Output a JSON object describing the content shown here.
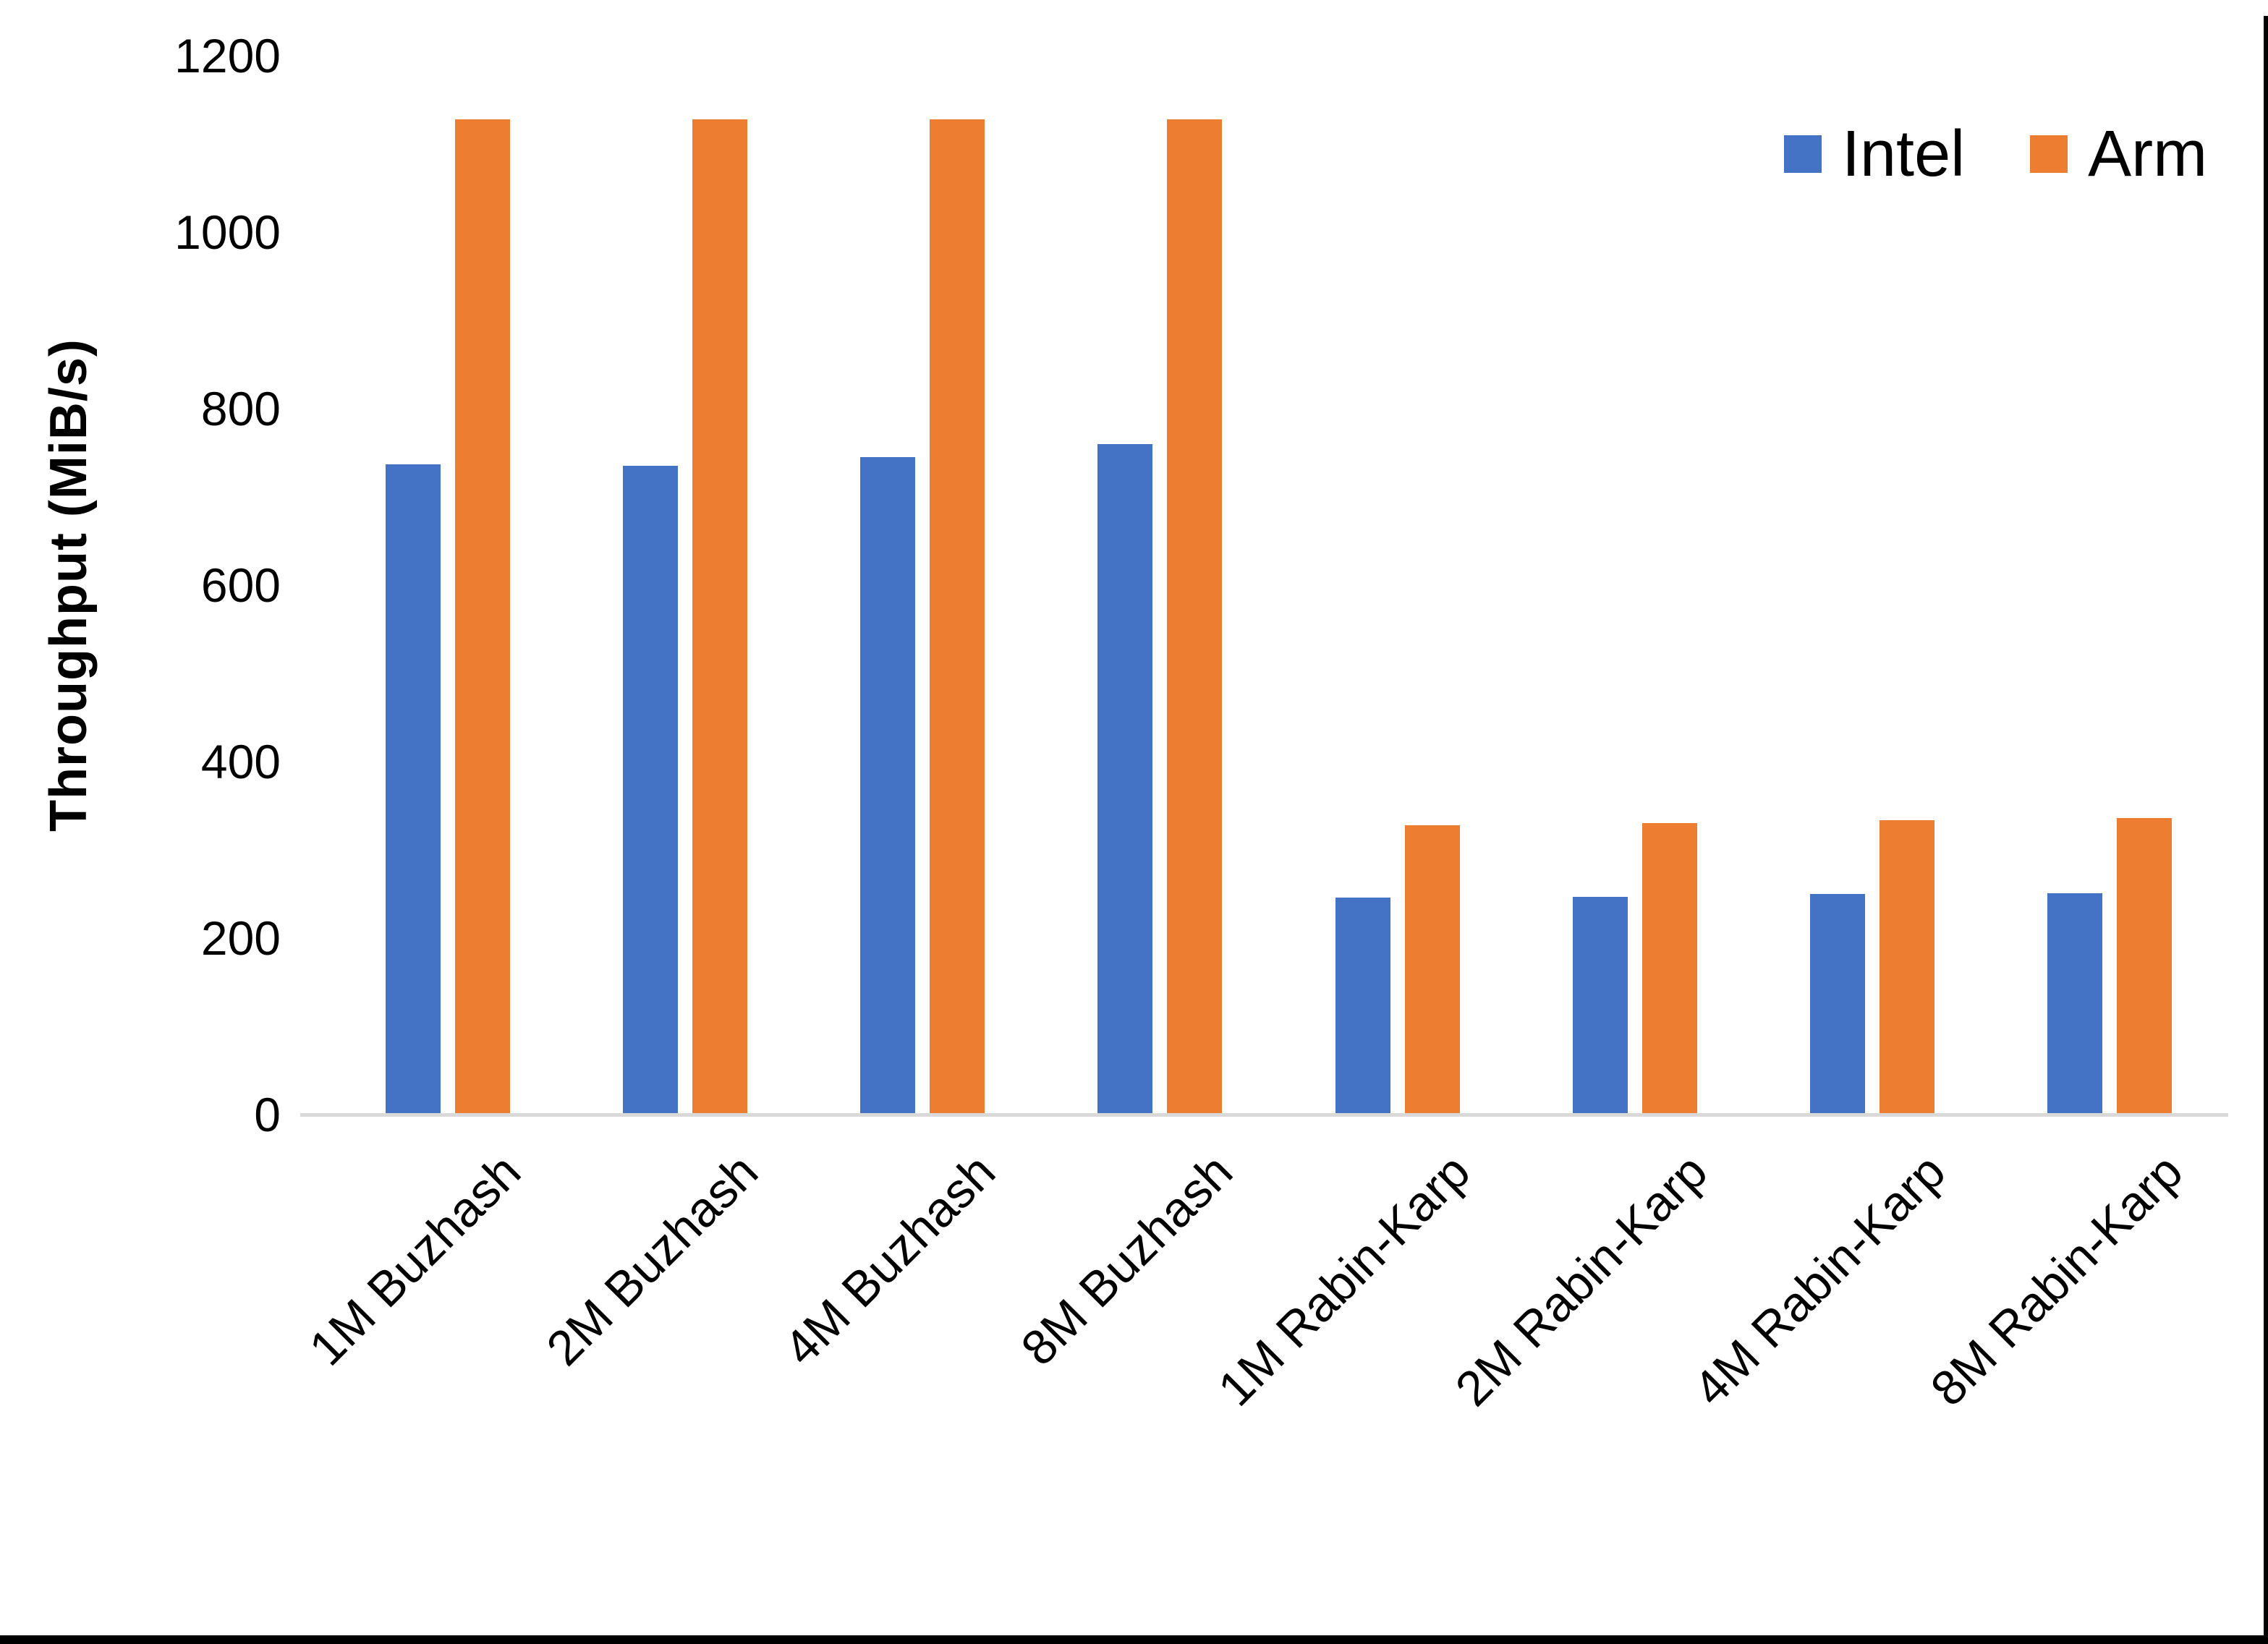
{
  "chart_data": {
    "type": "bar",
    "ylabel": "Throughput (MiB/s)",
    "ylim": [
      0,
      1200
    ],
    "yticks": [
      0,
      200,
      400,
      600,
      800,
      1000,
      1200
    ],
    "grid": false,
    "legend_position": "top-right",
    "axis_line_color": "#D9D9D9",
    "text_color": "#000000",
    "categories": [
      "1M Buzhash",
      "2M Buzhash",
      "4M Buzhash",
      "8M Buzhash",
      "1M Rabin-Karp",
      "2M Rabin-Karp",
      "4M Rabin-Karp",
      "8M Rabin-Karp"
    ],
    "series": [
      {
        "name": "Intel",
        "color": "#4472C4",
        "values": [
          737,
          735,
          745,
          760,
          246,
          247,
          250,
          251
        ]
      },
      {
        "name": "Arm",
        "color": "#ED7D31",
        "values": [
          1128,
          1128,
          1128,
          1128,
          328,
          330,
          334,
          336
        ]
      }
    ]
  }
}
